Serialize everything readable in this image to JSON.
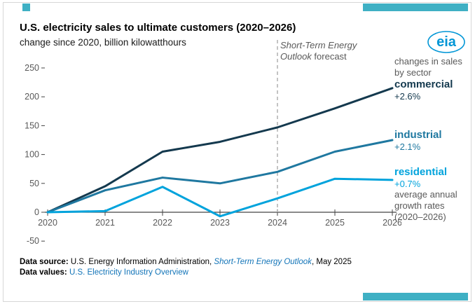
{
  "accent_color": "#3fb0c4",
  "logo_color": "#0096d6",
  "logo_text": "eia",
  "header": {
    "title": "U.S. electricity sales to ultimate customers (2020–2026)",
    "subtitle": "change since 2020, billion kilowatthours"
  },
  "forecast_note": {
    "line1": "Short-Term Energy",
    "line2_italic": "Outlook",
    "line2_rest": " forecast"
  },
  "right_panel": {
    "intro": "changes in sales by sector",
    "sectors": [
      {
        "label": "commercial",
        "rate": "+2.6%"
      },
      {
        "label": "industrial",
        "rate": "+2.1%"
      },
      {
        "label": "residential",
        "rate": "+0.7%"
      }
    ],
    "outro": "average annual growth rates (2020–2026)"
  },
  "footer": {
    "source_label": "Data source:",
    "source_pre": " U.S. Energy Information Administration, ",
    "source_link": "Short-Term Energy Outlook",
    "source_post": ", May 2025",
    "values_label": "Data values: ",
    "values_link": "U.S. Electricity Industry Overview"
  },
  "chart_data": {
    "type": "line",
    "title": "U.S. electricity sales to ultimate customers (2020–2026)",
    "ylabel": "change since 2020, billion kilowatthours",
    "x": [
      2020,
      2021,
      2022,
      2023,
      2024,
      2025,
      2026
    ],
    "series": [
      {
        "name": "commercial",
        "color": "#14394e",
        "values": [
          0,
          45,
          105,
          122,
          147,
          180,
          215
        ]
      },
      {
        "name": "industrial",
        "color": "#1f78a0",
        "values": [
          0,
          38,
          60,
          50,
          70,
          105,
          125
        ]
      },
      {
        "name": "residential",
        "color": "#00a3dc",
        "values": [
          0,
          2,
          44,
          -7,
          24,
          58,
          56
        ]
      }
    ],
    "ylim": [
      -50,
      250
    ],
    "yticks": [
      -50,
      0,
      50,
      100,
      150,
      200,
      250
    ],
    "forecast_x": 2024,
    "forecast_label": "Short-Term Energy Outlook forecast",
    "grid": false,
    "legend_position": "right"
  }
}
